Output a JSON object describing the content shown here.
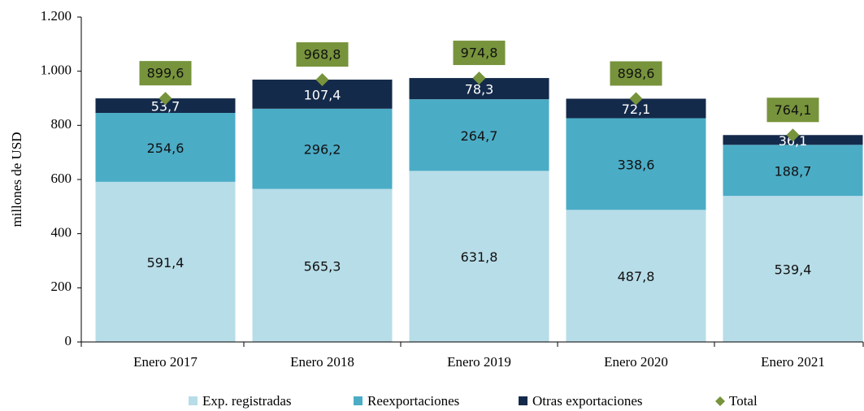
{
  "chart_data": {
    "type": "bar",
    "stacked": true,
    "ylabel": "millones de  USD",
    "categories": [
      "Enero 2017",
      "Enero 2018",
      "Enero 2019",
      "Enero 2020",
      "Enero 2021"
    ],
    "series": [
      {
        "name": "Exp. registradas",
        "color": "#b7dde8",
        "label_color": "#111111",
        "values": [
          591.4,
          565.3,
          631.8,
          487.8,
          539.4
        ],
        "value_labels": [
          "591,4",
          "565,3",
          "631,8",
          "487,8",
          "539,4"
        ]
      },
      {
        "name": "Reexportaciones",
        "color": "#4bacc6",
        "label_color": "#111111",
        "values": [
          254.6,
          296.2,
          264.7,
          338.6,
          188.7
        ],
        "value_labels": [
          "254,6",
          "296,2",
          "264,7",
          "338,6",
          "188,7"
        ]
      },
      {
        "name": "Otras exportaciones",
        "color": "#142a4a",
        "label_color": "#ffffff",
        "values": [
          53.7,
          107.4,
          78.3,
          72.1,
          36.1
        ],
        "value_labels": [
          "53,7",
          "107,4",
          "78,3",
          "72,1",
          "36,1"
        ]
      }
    ],
    "total": {
      "name": "Total",
      "color": "#77933c",
      "values": [
        899.6,
        968.8,
        974.8,
        898.6,
        764.1
      ],
      "value_labels": [
        "899,6",
        "968,8",
        "974,8",
        "898,6",
        "764,1"
      ]
    },
    "ylim": [
      0,
      1200
    ],
    "yticks": [
      0,
      200,
      400,
      600,
      800,
      {
        "value": 1000,
        "label": "1.000"
      },
      {
        "value": 1200,
        "label": "1.200"
      }
    ],
    "legend": "bottom"
  }
}
